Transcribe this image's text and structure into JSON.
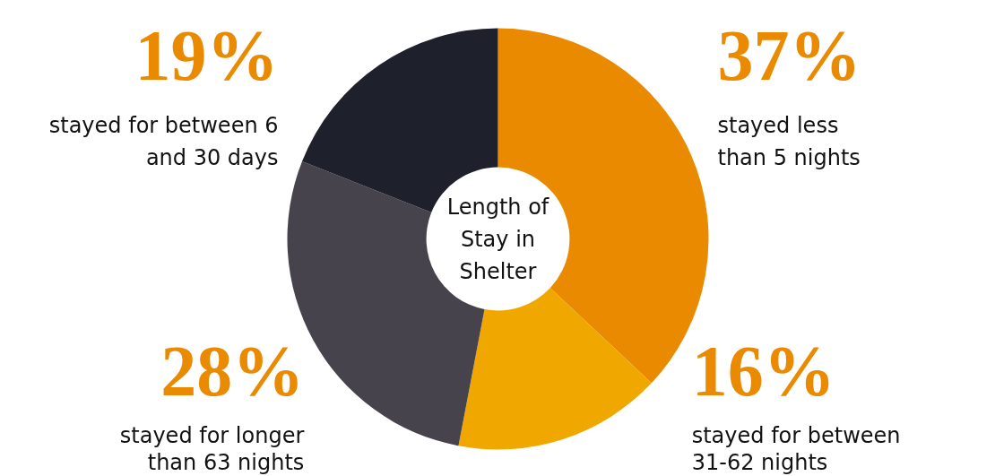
{
  "chart_data": {
    "type": "donut",
    "title": "Length of Stay in Shelter",
    "categories": [
      "stayed less\nthan 5 nights",
      "stayed for between\n31-62 nights",
      "stayed for longer\nthan 63 nights",
      "stayed for between 6\nand 30 days"
    ],
    "values": [
      37,
      16,
      28,
      19
    ],
    "value_labels": [
      "37%",
      "16%",
      "28%",
      "19%"
    ],
    "colors": [
      "#ea8a00",
      "#f0a800",
      "#46434d",
      "#1e202b"
    ]
  }
}
